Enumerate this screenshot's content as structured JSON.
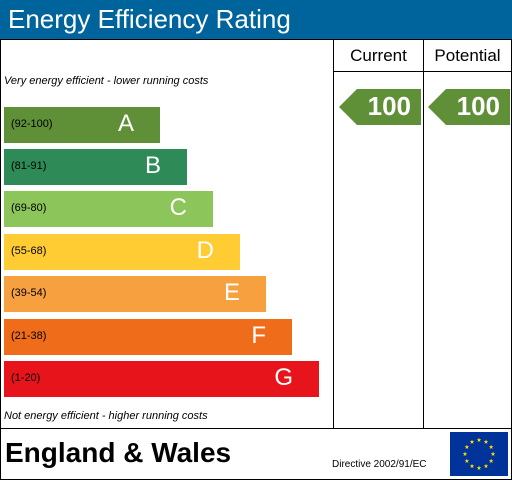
{
  "title": "Energy Efficiency Rating",
  "columns": {
    "current": "Current",
    "potential": "Potential"
  },
  "notes": {
    "top": "Very energy efficient - lower running costs",
    "bottom": "Not energy efficient - higher running costs"
  },
  "bands": [
    {
      "range": "(92-100)",
      "letter": "A",
      "color": "#5f8f37"
    },
    {
      "range": "(81-91)",
      "letter": "B",
      "color": "#2e8b57"
    },
    {
      "range": "(69-80)",
      "letter": "C",
      "color": "#8cc55a"
    },
    {
      "range": "(55-68)",
      "letter": "D",
      "color": "#ffcc33"
    },
    {
      "range": "(39-54)",
      "letter": "E",
      "color": "#f7a040"
    },
    {
      "range": "(21-38)",
      "letter": "F",
      "color": "#ef6c1a"
    },
    {
      "range": "(1-20)",
      "letter": "G",
      "color": "#e8141b"
    }
  ],
  "current": {
    "value": "100",
    "color": "#5f8f37"
  },
  "potential": {
    "value": "100",
    "color": "#5f8f37"
  },
  "footer": {
    "country": "England & Wales",
    "directive": "Directive 2002/91/EC",
    "flag_icon": "eu-flag-icon",
    "flag_color": "#003399",
    "star_color": "#ffdd00"
  }
}
